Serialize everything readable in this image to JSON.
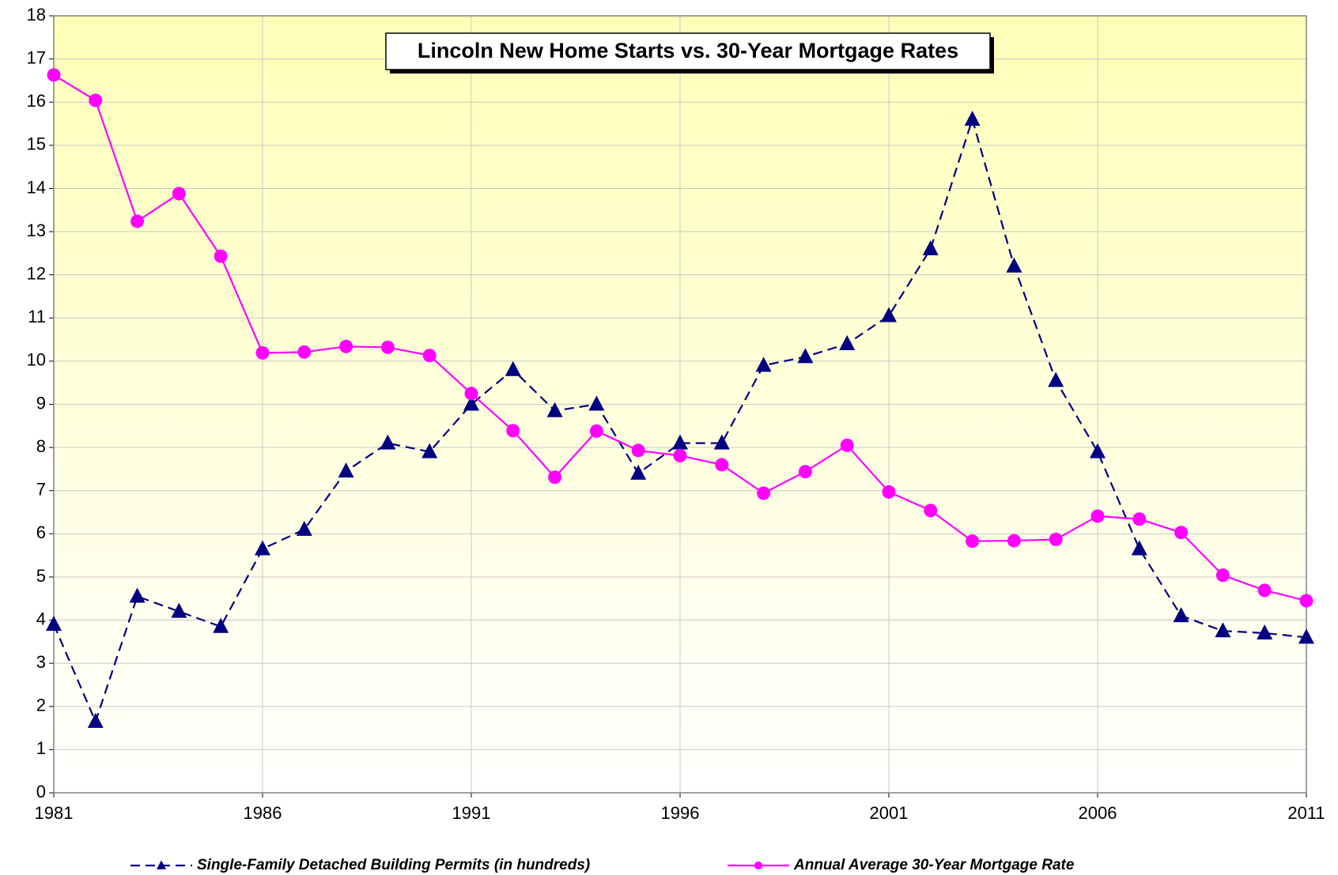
{
  "chart_data": {
    "type": "line",
    "title": "Lincoln New Home Starts vs. 30-Year Mortgage Rates",
    "x": [
      1981,
      1982,
      1983,
      1984,
      1985,
      1986,
      1987,
      1988,
      1989,
      1990,
      1991,
      1992,
      1993,
      1994,
      1995,
      1996,
      1997,
      1998,
      1999,
      2000,
      2001,
      2002,
      2003,
      2004,
      2005,
      2006,
      2007,
      2008,
      2009,
      2010,
      2011
    ],
    "series": [
      {
        "name": "Single-Family Detached Building Permits (in hundreds)",
        "color": "#000080",
        "marker": "triangle",
        "dash": true,
        "values": [
          3.9,
          1.65,
          4.55,
          4.2,
          3.85,
          5.65,
          6.1,
          7.45,
          8.1,
          7.9,
          9.0,
          9.8,
          8.85,
          9.0,
          7.4,
          8.1,
          8.1,
          9.9,
          10.1,
          10.4,
          11.05,
          12.6,
          15.6,
          12.2,
          9.55,
          7.9,
          5.65,
          4.1,
          3.75,
          3.7,
          3.6
        ]
      },
      {
        "name": "Annual Average 30-Year Mortgage Rate",
        "color": "#ff00ff",
        "marker": "circle",
        "dash": false,
        "values": [
          16.63,
          16.04,
          13.24,
          13.88,
          12.43,
          10.19,
          10.21,
          10.34,
          10.32,
          10.13,
          9.25,
          8.39,
          7.31,
          8.38,
          7.93,
          7.81,
          7.6,
          6.94,
          7.44,
          8.05,
          6.97,
          6.54,
          5.83,
          5.84,
          5.87,
          6.41,
          6.34,
          6.03,
          5.04,
          4.69,
          4.45
        ]
      }
    ],
    "xlim": [
      1981,
      2011
    ],
    "xticks": [
      1981,
      1986,
      1991,
      1996,
      2001,
      2006,
      2011
    ],
    "ylim": [
      0,
      18
    ],
    "yticks": [
      0,
      1,
      2,
      3,
      4,
      5,
      6,
      7,
      8,
      9,
      10,
      11,
      12,
      13,
      14,
      15,
      16,
      17,
      18
    ],
    "grid": true,
    "legend": "bottom"
  }
}
